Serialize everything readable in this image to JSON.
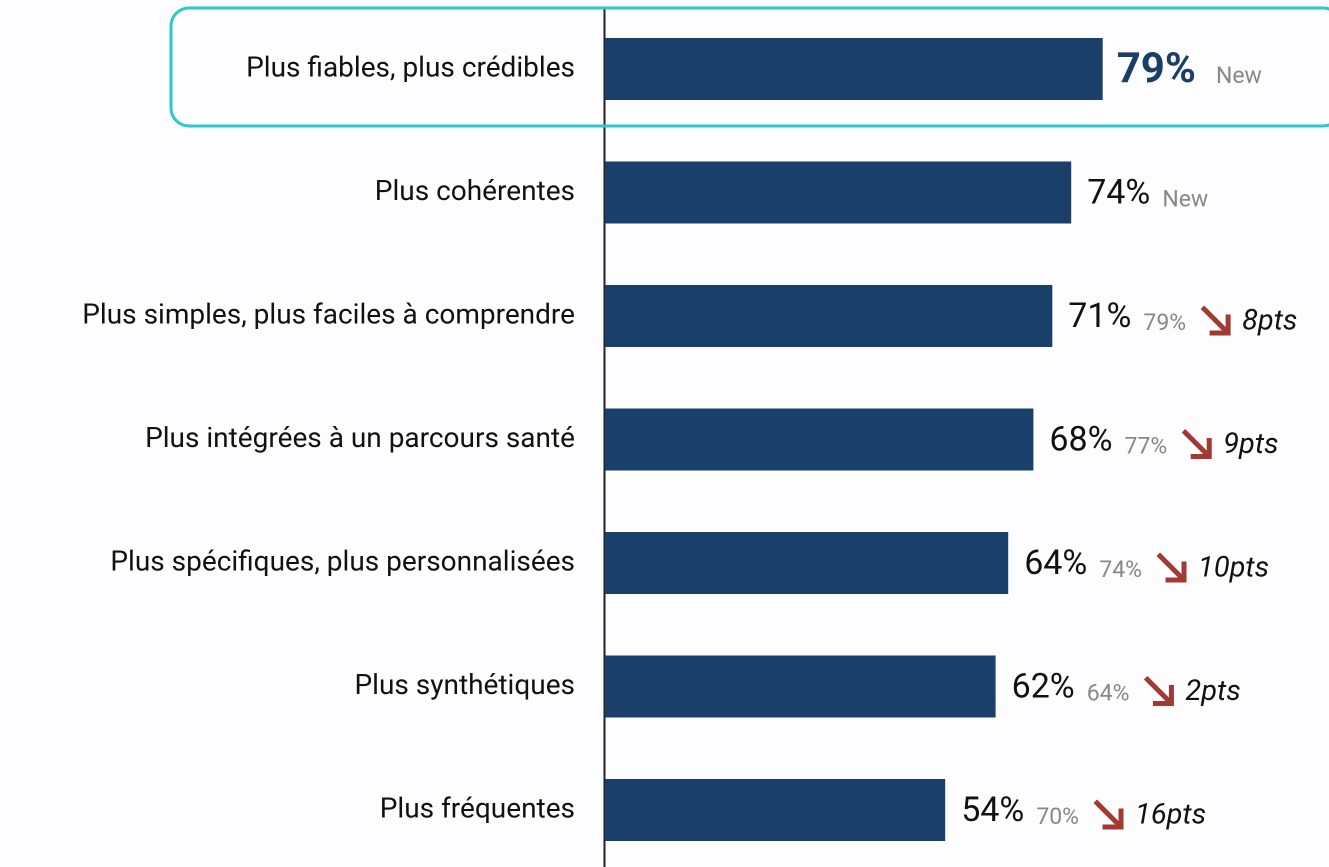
{
  "chart_data": {
    "type": "bar",
    "orientation": "horizontal",
    "categories": [
      "Plus fiables, plus crédibles",
      "Plus cohérentes",
      "Plus simples, plus faciles à comprendre",
      "Plus intégrées à un parcours santé",
      "Plus spécifiques, plus personnalisées",
      "Plus synthétiques",
      "Plus fréquentes"
    ],
    "values": [
      79,
      74,
      71,
      68,
      64,
      62,
      54
    ],
    "value_labels": [
      "79%",
      "74%",
      "71%",
      "68%",
      "64%",
      "62%",
      "54%"
    ],
    "previous": [
      null,
      null,
      79,
      77,
      74,
      64,
      70
    ],
    "previous_labels": [
      "New",
      "New",
      "79%",
      "77%",
      "74%",
      "64%",
      "70%"
    ],
    "change": [
      null,
      null,
      8,
      9,
      10,
      2,
      16
    ],
    "change_labels": [
      null,
      null,
      "8pts",
      "9pts",
      "10pts",
      "2pts",
      "16pts"
    ],
    "color": "#1a3f6a",
    "arrow_color": "#a03a33",
    "highlight_color": "#2cc8cf"
  }
}
